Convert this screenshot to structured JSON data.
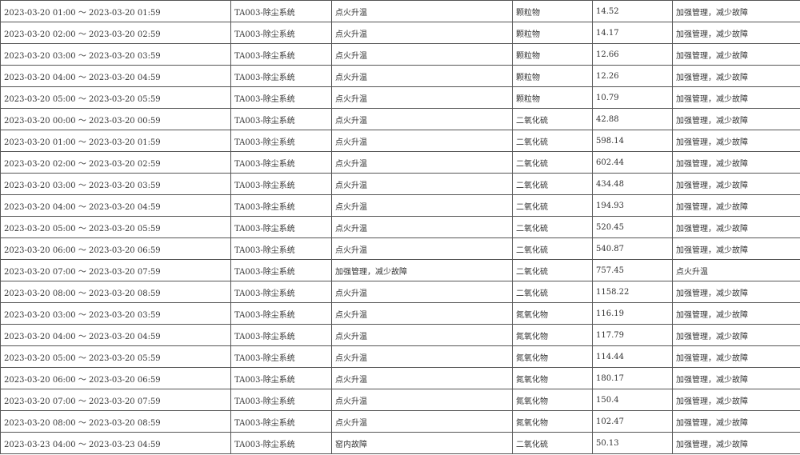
{
  "rows": [
    [
      "2023-03-20 01:00 ～ 2023-03-20 01:59",
      "TA003-除尘系统",
      "点火升温",
      "颗粒物",
      "14.52",
      "加强管理，减少故障"
    ],
    [
      "2023-03-20 02:00 ～ 2023-03-20 02:59",
      "TA003-除尘系统",
      "点火升温",
      "颗粒物",
      "14.17",
      "加强管理，减少故障"
    ],
    [
      "2023-03-20 03:00 ～ 2023-03-20 03:59",
      "TA003-除尘系统",
      "点火升温",
      "颗粒物",
      "12.66",
      "加强管理，减少故障"
    ],
    [
      "2023-03-20 04:00 ～ 2023-03-20 04:59",
      "TA003-除尘系统",
      "点火升温",
      "颗粒物",
      "12.26",
      "加强管理，减少故障"
    ],
    [
      "2023-03-20 05:00 ～ 2023-03-20 05:59",
      "TA003-除尘系统",
      "点火升温",
      "颗粒物",
      "10.79",
      "加强管理，减少故障"
    ],
    [
      "2023-03-20 00:00 ～ 2023-03-20 00:59",
      "TA003-除尘系统",
      "点火升温",
      "二氧化硫",
      "42.88",
      "加强管理，减少故障"
    ],
    [
      "2023-03-20 01:00 ～ 2023-03-20 01:59",
      "TA003-除尘系统",
      "点火升温",
      "二氧化硫",
      "598.14",
      "加强管理，减少故障"
    ],
    [
      "2023-03-20 02:00 ～ 2023-03-20 02:59",
      "TA003-除尘系统",
      "点火升温",
      "二氧化硫",
      "602.44",
      "加强管理，减少故障"
    ],
    [
      "2023-03-20 03:00 ～ 2023-03-20 03:59",
      "TA003-除尘系统",
      "点火升温",
      "二氧化硫",
      "434.48",
      "加强管理，减少故障"
    ],
    [
      "2023-03-20 04:00 ～ 2023-03-20 04:59",
      "TA003-除尘系统",
      "点火升温",
      "二氧化硫",
      "194.93",
      "加强管理，减少故障"
    ],
    [
      "2023-03-20 05:00 ～ 2023-03-20 05:59",
      "TA003-除尘系统",
      "点火升温",
      "二氧化硫",
      "520.45",
      "加强管理，减少故障"
    ],
    [
      "2023-03-20 06:00 ～ 2023-03-20 06:59",
      "TA003-除尘系统",
      "点火升温",
      "二氧化硫",
      "540.87",
      "加强管理，减少故障"
    ],
    [
      "2023-03-20 07:00 ～ 2023-03-20 07:59",
      "TA003-除尘系统",
      "加强管理，减少故障",
      "二氧化硫",
      "757.45",
      "点火升温"
    ],
    [
      "2023-03-20 08:00 ～ 2023-03-20 08:59",
      "TA003-除尘系统",
      "点火升温",
      "二氧化硫",
      "1158.22",
      "加强管理，减少故障"
    ],
    [
      "2023-03-20 03:00 ～ 2023-03-20 03:59",
      "TA003-除尘系统",
      "点火升温",
      "氮氧化物",
      "116.19",
      "加强管理，减少故障"
    ],
    [
      "2023-03-20 04:00 ～ 2023-03-20 04:59",
      "TA003-除尘系统",
      "点火升温",
      "氮氧化物",
      "117.79",
      "加强管理，减少故障"
    ],
    [
      "2023-03-20 05:00 ～ 2023-03-20 05:59",
      "TA003-除尘系统",
      "点火升温",
      "氮氧化物",
      "114.44",
      "加强管理，减少故障"
    ],
    [
      "2023-03-20 06:00 ～ 2023-03-20 06:59",
      "TA003-除尘系统",
      "点火升温",
      "氮氧化物",
      "180.17",
      "加强管理，减少故障"
    ],
    [
      "2023-03-20 07:00 ～ 2023-03-20 07:59",
      "TA003-除尘系统",
      "点火升温",
      "氮氧化物",
      "150.4",
      "加强管理，减少故障"
    ],
    [
      "2023-03-20 08:00 ～ 2023-03-20 08:59",
      "TA003-除尘系统",
      "点火升温",
      "氮氧化物",
      "102.47",
      "加强管理，减少故障"
    ],
    [
      "2023-03-23 04:00 ～ 2023-03-23 04:59",
      "TA003-除尘系统",
      "窑内故障",
      "二氧化硫",
      "50.13",
      "加强管理，减少故障"
    ]
  ]
}
